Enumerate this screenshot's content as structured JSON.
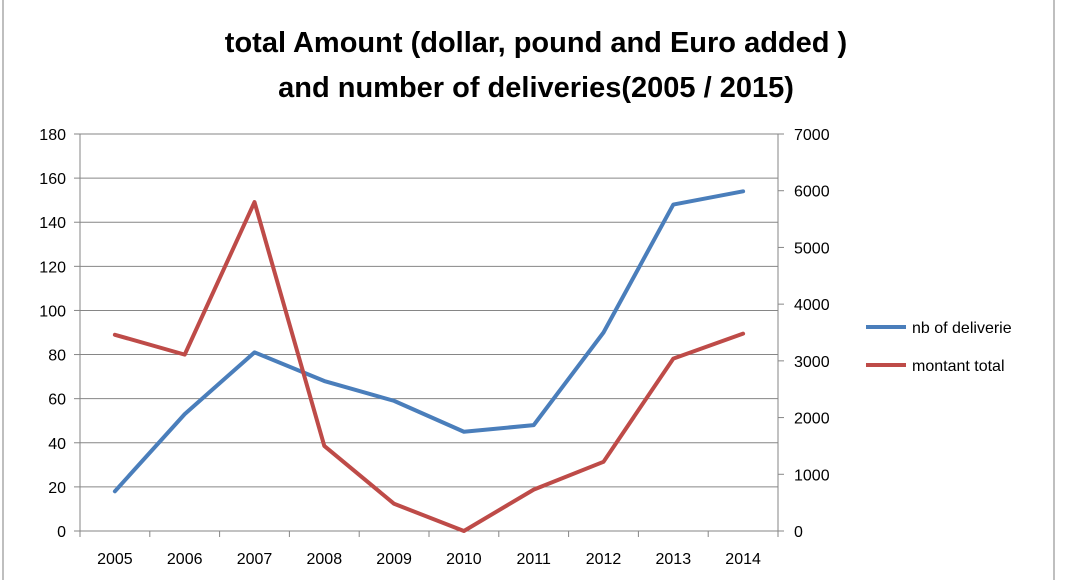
{
  "chart_data": {
    "type": "line",
    "title_lines": [
      "total Amount (dollar, pound and Euro added )",
      "and number of deliveries(2005 / 2015)"
    ],
    "categories": [
      "2005",
      "2006",
      "2007",
      "2008",
      "2009",
      "2010",
      "2011",
      "2012",
      "2013",
      "2014"
    ],
    "y_left": {
      "ticks": [
        "0",
        "20",
        "40",
        "60",
        "80",
        "100",
        "120",
        "140",
        "160",
        "180"
      ],
      "range": [
        0,
        180
      ]
    },
    "y_right": {
      "ticks": [
        "0",
        "1000",
        "2000",
        "3000",
        "4000",
        "5000",
        "6000",
        "7000"
      ],
      "range": [
        0,
        7000
      ]
    },
    "series": [
      {
        "name": "nb of deliverie",
        "axis": "left",
        "color": "#4a7ebb",
        "values": [
          18,
          53,
          81,
          68,
          59,
          45,
          48,
          90,
          148,
          154
        ]
      },
      {
        "name": "montant total",
        "axis": "right",
        "color": "#be4b48",
        "values": [
          3460,
          3110,
          5800,
          1500,
          480,
          0,
          730,
          1220,
          3040,
          3480
        ]
      }
    ],
    "grid": "horizontal",
    "legend_position": "right"
  }
}
